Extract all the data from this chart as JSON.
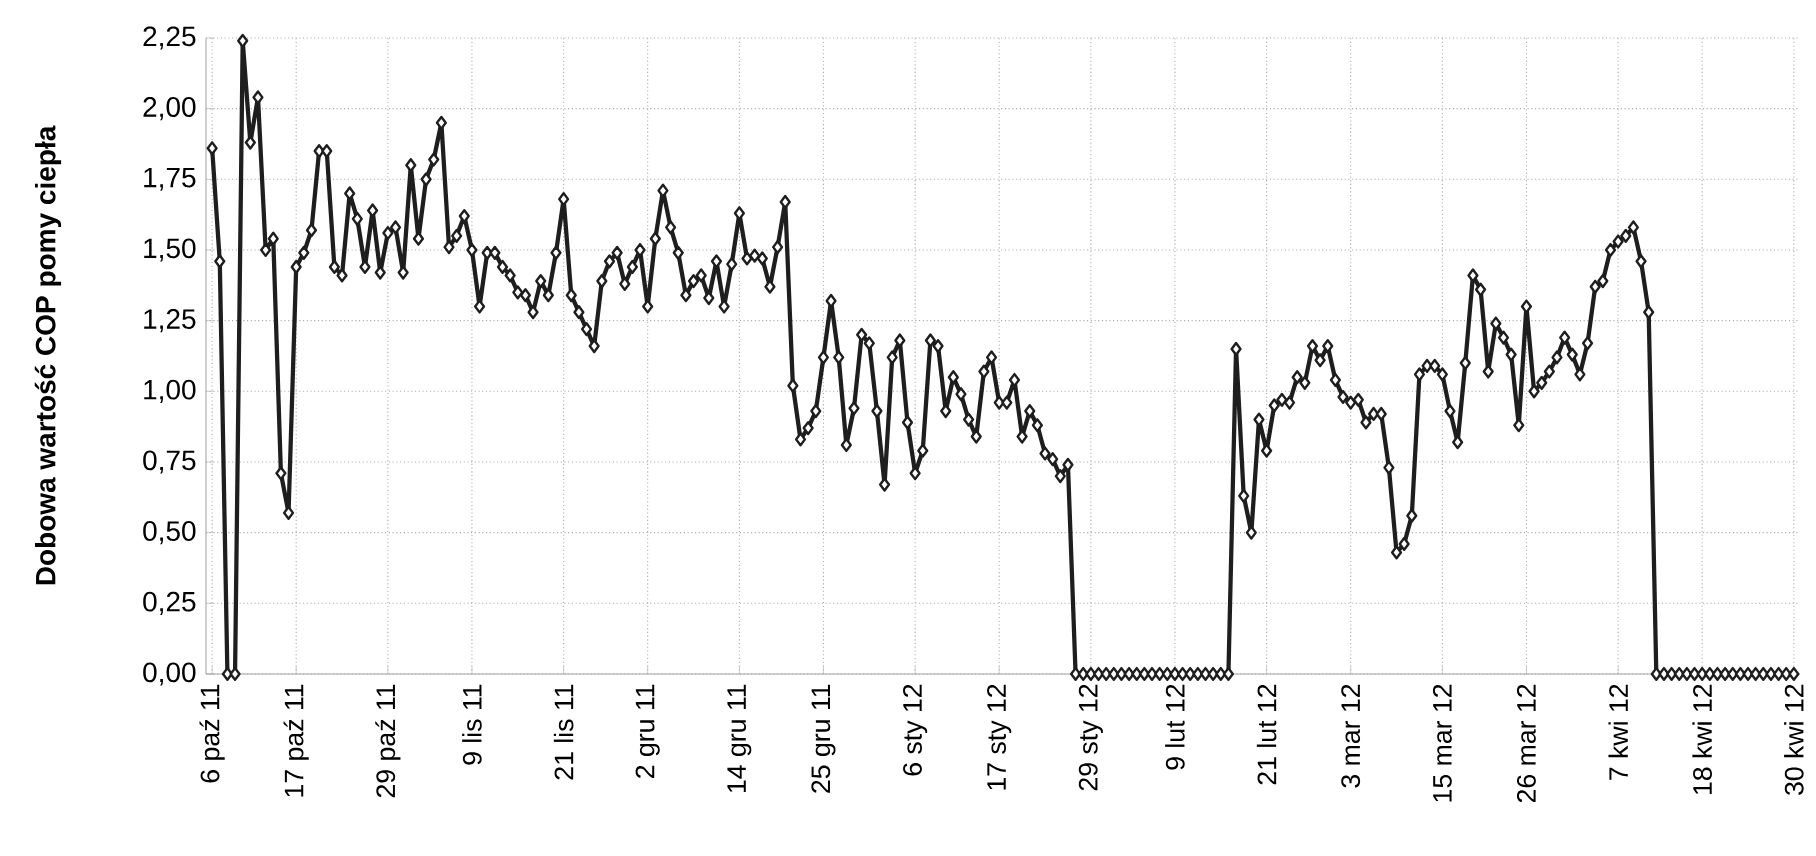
{
  "chart_data": {
    "type": "line",
    "ylabel": "Dobowa wartość COP pomy ciepła",
    "categories": [
      "6 paź 11",
      null,
      null,
      null,
      null,
      null,
      null,
      null,
      null,
      null,
      null,
      "17 paź 11",
      null,
      null,
      null,
      null,
      null,
      null,
      null,
      null,
      null,
      null,
      null,
      "29 paź 11",
      null,
      null,
      null,
      null,
      null,
      null,
      null,
      null,
      null,
      null,
      "9 lis 11",
      null,
      null,
      null,
      null,
      null,
      null,
      null,
      null,
      null,
      null,
      null,
      "21 lis 11",
      null,
      null,
      null,
      null,
      null,
      null,
      null,
      null,
      null,
      null,
      "2 gru 11",
      null,
      null,
      null,
      null,
      null,
      null,
      null,
      null,
      null,
      null,
      null,
      "14 gru 11",
      null,
      null,
      null,
      null,
      null,
      null,
      null,
      null,
      null,
      null,
      "25 gru 11",
      null,
      null,
      null,
      null,
      null,
      null,
      null,
      null,
      null,
      null,
      null,
      "6 sty 12",
      null,
      null,
      null,
      null,
      null,
      null,
      null,
      null,
      null,
      null,
      "17 sty 12",
      null,
      null,
      null,
      null,
      null,
      null,
      null,
      null,
      null,
      null,
      null,
      "29 sty 12",
      null,
      null,
      null,
      null,
      null,
      null,
      null,
      null,
      null,
      null,
      "9 lut 12",
      null,
      null,
      null,
      null,
      null,
      null,
      null,
      null,
      null,
      null,
      null,
      "21 lut 12",
      null,
      null,
      null,
      null,
      null,
      null,
      null,
      null,
      null,
      null,
      "3 mar 12",
      null,
      null,
      null,
      null,
      null,
      null,
      null,
      null,
      null,
      null,
      null,
      "15 mar 12",
      null,
      null,
      null,
      null,
      null,
      null,
      null,
      null,
      null,
      null,
      "26 mar 12",
      null,
      null,
      null,
      null,
      null,
      null,
      null,
      null,
      null,
      null,
      null,
      "7 kwi 12",
      null,
      null,
      null,
      null,
      null,
      null,
      null,
      null,
      null,
      null,
      "18 kwi 12",
      null,
      null,
      null,
      null,
      null,
      null,
      null,
      null,
      null,
      null,
      null,
      "30 kwi 12"
    ],
    "values": [
      1.86,
      1.46,
      0,
      0,
      2.24,
      1.88,
      2.04,
      1.5,
      1.54,
      0.71,
      0.57,
      1.44,
      1.49,
      1.57,
      1.85,
      1.85,
      1.44,
      1.41,
      1.7,
      1.61,
      1.44,
      1.64,
      1.42,
      1.56,
      1.58,
      1.42,
      1.8,
      1.54,
      1.75,
      1.82,
      1.95,
      1.51,
      1.55,
      1.62,
      1.5,
      1.3,
      1.49,
      1.49,
      1.44,
      1.41,
      1.35,
      1.34,
      1.28,
      1.39,
      1.34,
      1.49,
      1.68,
      1.34,
      1.28,
      1.22,
      1.16,
      1.39,
      1.46,
      1.49,
      1.38,
      1.44,
      1.5,
      1.3,
      1.54,
      1.71,
      1.58,
      1.49,
      1.34,
      1.39,
      1.41,
      1.33,
      1.46,
      1.3,
      1.45,
      1.63,
      1.47,
      1.48,
      1.47,
      1.37,
      1.51,
      1.67,
      1.02,
      0.83,
      0.87,
      0.93,
      1.12,
      1.32,
      1.12,
      0.81,
      0.94,
      1.2,
      1.17,
      0.93,
      0.67,
      1.12,
      1.18,
      0.89,
      0.71,
      0.79,
      1.18,
      1.16,
      0.93,
      1.05,
      0.99,
      0.9,
      0.84,
      1.07,
      1.12,
      0.96,
      0.96,
      1.04,
      0.84,
      0.93,
      0.88,
      0.78,
      0.76,
      0.7,
      0.74,
      0,
      0,
      0,
      0,
      0,
      0,
      0,
      0,
      0,
      0,
      0,
      0,
      0,
      0,
      0,
      0,
      0,
      0,
      0,
      0,
      0,
      1.15,
      0.63,
      0.5,
      0.9,
      0.79,
      0.95,
      0.97,
      0.96,
      1.05,
      1.03,
      1.16,
      1.11,
      1.16,
      1.04,
      0.98,
      0.96,
      0.97,
      0.89,
      0.92,
      0.92,
      0.73,
      0.43,
      0.46,
      0.56,
      1.06,
      1.09,
      1.09,
      1.06,
      0.93,
      0.82,
      1.1,
      1.41,
      1.36,
      1.07,
      1.24,
      1.19,
      1.13,
      0.88,
      1.3,
      1.0,
      1.03,
      1.07,
      1.12,
      1.19,
      1.13,
      1.06,
      1.17,
      1.37,
      1.39,
      1.5,
      1.53,
      1.55,
      1.58,
      1.46,
      1.28,
      0,
      0,
      0,
      0,
      0,
      0,
      0,
      0,
      0,
      0,
      0,
      0,
      0,
      0,
      0,
      0,
      0,
      0,
      0
    ],
    "color": "#1e1e1e",
    "marker": "diamond",
    "line_style": "solid",
    "grid": true,
    "ylim": [
      0,
      2.25
    ],
    "yticks": [
      {
        "value": 0,
        "label": "0,00"
      },
      {
        "value": 0.25,
        "label": "0,25"
      },
      {
        "value": 0.5,
        "label": "0,50"
      },
      {
        "value": 0.75,
        "label": "0,75"
      },
      {
        "value": 1,
        "label": "1,00"
      },
      {
        "value": 1.25,
        "label": "1,25"
      },
      {
        "value": 1.5,
        "label": "1,50"
      },
      {
        "value": 1.75,
        "label": "1,75"
      },
      {
        "value": 2,
        "label": "2,00"
      },
      {
        "value": 2.25,
        "label": "2,25"
      }
    ]
  }
}
